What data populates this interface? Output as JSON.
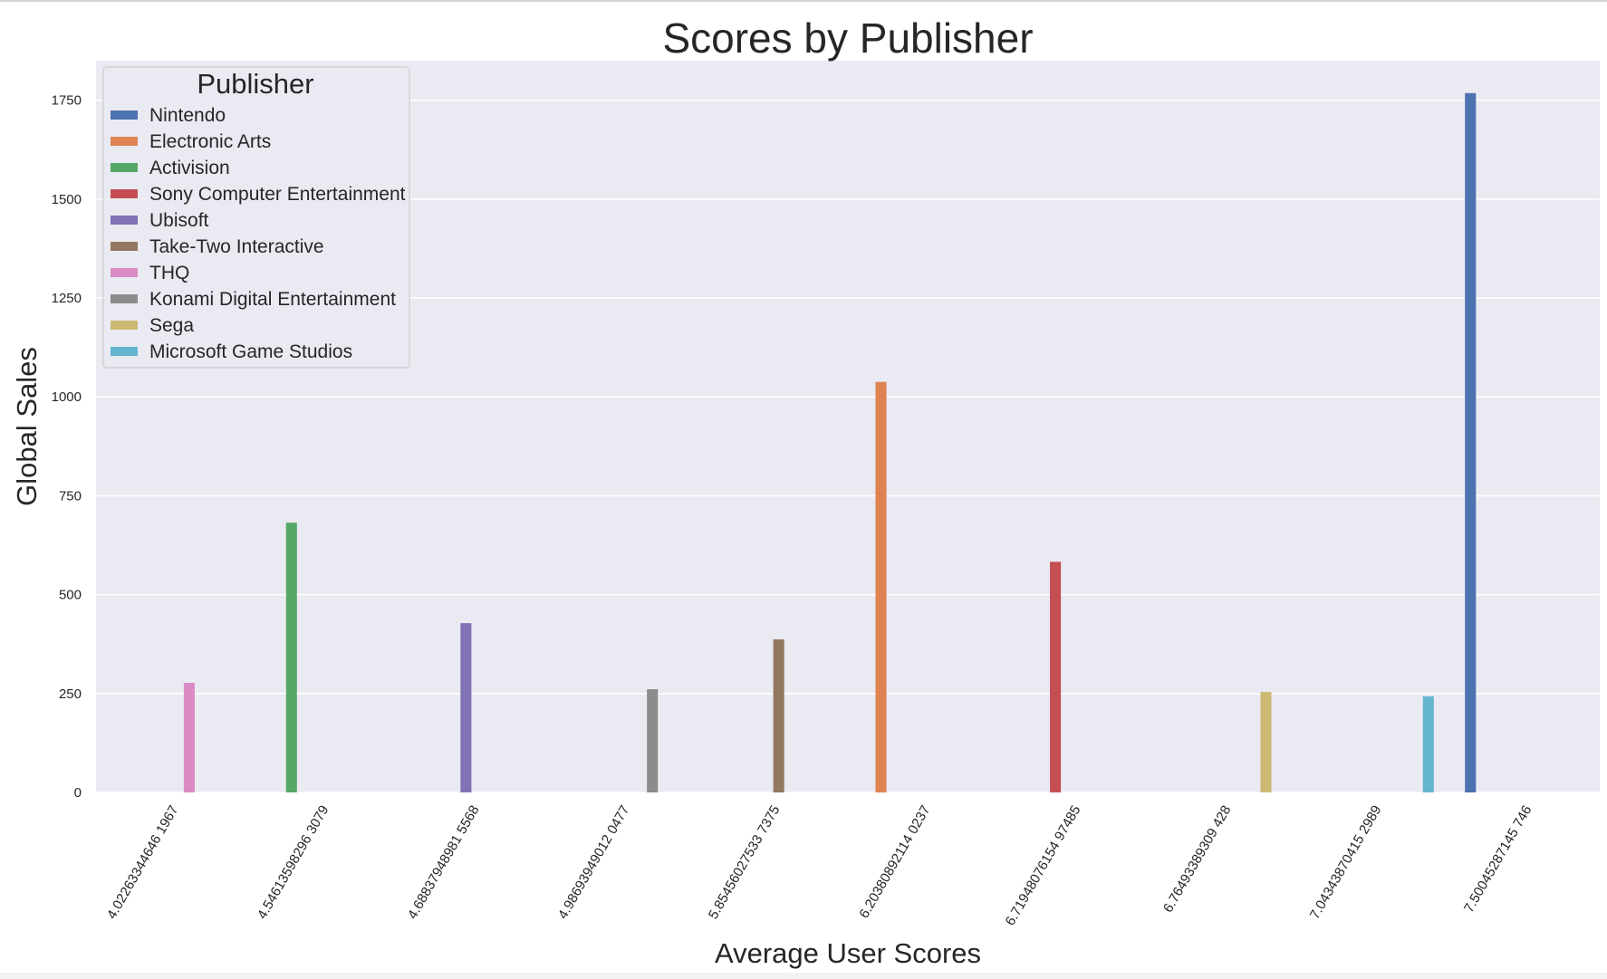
{
  "chart_data": {
    "type": "bar",
    "title": "Scores by Publisher",
    "xlabel": "Average User Scores",
    "ylabel": "Global Sales",
    "ylim": [
      0,
      1850
    ],
    "yticks": [
      0,
      250,
      500,
      750,
      1000,
      1250,
      1500,
      1750
    ],
    "grid": true,
    "legend": {
      "title": "Publisher",
      "placement": "top-left"
    },
    "categories": [
      "4.02263344646 1967",
      "4.54613598296 3079",
      "4.68837948981 5568",
      "4.98693949012 0477",
      "5.85456027533 7375",
      "6.20380892114 0237",
      "6.71948076154 97485",
      "6.76493389309 428",
      "7.04343870415 2989",
      "7.50045287145 746"
    ],
    "series": [
      {
        "name": "Nintendo",
        "color": "#4c72b0",
        "values": [
          null,
          null,
          null,
          null,
          null,
          null,
          null,
          null,
          null,
          1768
        ]
      },
      {
        "name": "Electronic Arts",
        "color": "#dd8452",
        "values": [
          null,
          null,
          null,
          null,
          null,
          1038,
          null,
          null,
          null,
          null
        ]
      },
      {
        "name": "Activision",
        "color": "#55a868",
        "values": [
          null,
          682,
          null,
          null,
          null,
          null,
          null,
          null,
          null,
          null
        ]
      },
      {
        "name": "Sony Computer Entertainment",
        "color": "#c44e52",
        "values": [
          null,
          null,
          null,
          null,
          null,
          null,
          583,
          null,
          null,
          null
        ]
      },
      {
        "name": "Ubisoft",
        "color": "#8172b3",
        "values": [
          null,
          null,
          428,
          null,
          null,
          null,
          null,
          null,
          null,
          null
        ]
      },
      {
        "name": "Take-Two Interactive",
        "color": "#937860",
        "values": [
          null,
          null,
          null,
          null,
          387,
          null,
          null,
          null,
          null,
          null
        ]
      },
      {
        "name": "THQ",
        "color": "#da8bc3",
        "values": [
          277,
          null,
          null,
          null,
          null,
          null,
          null,
          null,
          null,
          null
        ]
      },
      {
        "name": "Konami Digital Entertainment",
        "color": "#8c8c8c",
        "values": [
          null,
          null,
          null,
          261,
          null,
          null,
          null,
          null,
          null,
          null
        ]
      },
      {
        "name": "Sega",
        "color": "#ccb974",
        "values": [
          null,
          null,
          null,
          null,
          null,
          null,
          null,
          254,
          null,
          null
        ]
      },
      {
        "name": "Microsoft Game Studios",
        "color": "#64b5cd",
        "values": [
          null,
          null,
          null,
          null,
          null,
          null,
          null,
          null,
          243,
          null
        ]
      }
    ]
  }
}
